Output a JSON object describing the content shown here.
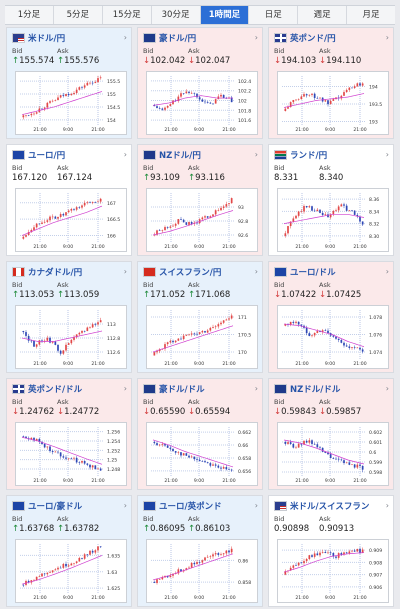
{
  "tabs": [
    {
      "label": "1分足",
      "active": false
    },
    {
      "label": "5分足",
      "active": false
    },
    {
      "label": "15分足",
      "active": false
    },
    {
      "label": "30分足",
      "active": false
    },
    {
      "label": "1時間足",
      "active": true
    },
    {
      "label": "日足",
      "active": false
    },
    {
      "label": "週足",
      "active": false
    },
    {
      "label": "月足",
      "active": false
    }
  ],
  "labels": {
    "bid": "Bid",
    "ask": "Ask"
  },
  "colors": {
    "up": "#1e8a3a",
    "down": "#d23b3b",
    "candle_up": "#e24848",
    "candle_down": "#2f48b6",
    "ma": "#cf3fcf",
    "card_blue": "#e7f1fb",
    "card_pink": "#fbe9ea"
  },
  "cards": [
    {
      "name": "米ドル/円",
      "bg": "blue",
      "flag": "us",
      "dir": "up",
      "bid": "155.574",
      "ask": "155.576",
      "chart_data": {
        "type": "candlestick",
        "xticks": [
          "21:00",
          "9:00",
          "21:00"
        ],
        "yticks": [
          "155.5",
          "155",
          "154.5",
          "154"
        ],
        "ylim": [
          153.8,
          155.7
        ],
        "trend": [
          154.1,
          154.3,
          154.6,
          154.9,
          155.1,
          155.4,
          155.6
        ],
        "ma": [
          154.2,
          154.35,
          154.5,
          154.7,
          154.9,
          155.1
        ]
      }
    },
    {
      "name": "豪ドル/円",
      "bg": "pink",
      "flag": "au",
      "dir": "down",
      "bid": "102.042",
      "ask": "102.047",
      "chart_data": {
        "type": "candlestick",
        "xticks": [
          "21:00",
          "9:00",
          "21:00"
        ],
        "yticks": [
          "102.4",
          "102.2",
          "102",
          "101.8",
          "101.6"
        ],
        "ylim": [
          101.5,
          102.5
        ],
        "trend": [
          101.9,
          101.8,
          102.0,
          102.2,
          102.1,
          101.9,
          102.1,
          102.0
        ],
        "ma": [
          101.9,
          101.95,
          102.05,
          102.1,
          102.05,
          102.05
        ]
      }
    },
    {
      "name": "英ポンド/円",
      "bg": "pink",
      "flag": "gb",
      "dir": "down",
      "bid": "194.103",
      "ask": "194.110",
      "chart_data": {
        "type": "candlestick",
        "xticks": [
          "21:00",
          "9:00",
          "21:00"
        ],
        "yticks": [
          "194",
          "193.5",
          "193"
        ],
        "ylim": [
          192.9,
          194.3
        ],
        "trend": [
          193.3,
          193.6,
          193.8,
          193.7,
          193.5,
          193.7,
          194.0,
          194.1
        ],
        "ma": [
          193.4,
          193.5,
          193.6,
          193.65,
          193.7,
          193.8
        ]
      }
    },
    {
      "name": "ユーロ/円",
      "bg": "white",
      "flag": "eu",
      "dir": "none",
      "bid": "167.120",
      "ask": "167.124",
      "chart_data": {
        "type": "candlestick",
        "xticks": [
          "21:00",
          "9:00",
          "21:00"
        ],
        "yticks": [
          "167",
          "166.5",
          "166"
        ],
        "ylim": [
          165.8,
          167.3
        ],
        "trend": [
          165.9,
          166.3,
          166.5,
          166.6,
          166.8,
          167.0,
          167.1
        ],
        "ma": [
          166.0,
          166.2,
          166.4,
          166.55,
          166.7,
          166.9
        ]
      }
    },
    {
      "name": "NZドル/円",
      "bg": "pink",
      "flag": "nz",
      "dir": "up",
      "bid": "93.109",
      "ask": "93.116",
      "chart_data": {
        "type": "candlestick",
        "xticks": [
          "21:00",
          "9:00",
          "21:00"
        ],
        "yticks": [
          "93",
          "92.8",
          "92.6"
        ],
        "ylim": [
          92.5,
          93.2
        ],
        "trend": [
          92.6,
          92.7,
          92.8,
          92.75,
          92.85,
          92.95,
          93.1
        ],
        "ma": [
          92.6,
          92.65,
          92.72,
          92.8,
          92.88,
          92.95
        ]
      }
    },
    {
      "name": "ランド/円",
      "bg": "white",
      "flag": "za",
      "dir": "none",
      "bid": "8.331",
      "ask": "8.340",
      "chart_data": {
        "type": "candlestick",
        "xticks": [
          "21:00",
          "9:00",
          "21:00"
        ],
        "yticks": [
          "8.36",
          "8.34",
          "8.32",
          "8.30"
        ],
        "ylim": [
          8.29,
          8.37
        ],
        "trend": [
          8.3,
          8.33,
          8.35,
          8.34,
          8.33,
          8.35,
          8.34,
          8.32
        ],
        "ma": [
          8.32,
          8.325,
          8.33,
          8.335,
          8.335,
          8.33
        ]
      }
    },
    {
      "name": "カナダドル/円",
      "bg": "blue",
      "flag": "ca",
      "dir": "up",
      "bid": "113.053",
      "ask": "113.059",
      "chart_data": {
        "type": "candlestick",
        "xticks": [
          "21:00",
          "9:00",
          "21:00"
        ],
        "yticks": [
          "113",
          "112.8",
          "112.6"
        ],
        "ylim": [
          112.5,
          113.2
        ],
        "trend": [
          112.9,
          112.7,
          112.8,
          112.6,
          112.8,
          112.95,
          113.05
        ],
        "ma": [
          112.8,
          112.75,
          112.75,
          112.8,
          112.85,
          112.9
        ]
      }
    },
    {
      "name": "スイスフラン/円",
      "bg": "blue",
      "flag": "ch",
      "dir": "up",
      "bid": "171.052",
      "ask": "171.068",
      "chart_data": {
        "type": "candlestick",
        "xticks": [
          "21:00",
          "9:00",
          "21:00"
        ],
        "yticks": [
          "171",
          "170.5",
          "170"
        ],
        "ylim": [
          169.8,
          171.2
        ],
        "trend": [
          169.9,
          170.2,
          170.4,
          170.5,
          170.6,
          170.8,
          171.0
        ],
        "ma": [
          170.0,
          170.15,
          170.3,
          170.45,
          170.6,
          170.75
        ]
      }
    },
    {
      "name": "ユーロ/ドル",
      "bg": "pink",
      "flag": "eu",
      "dir": "down",
      "bid": "1.07422",
      "ask": "1.07425",
      "chart_data": {
        "type": "candlestick",
        "xticks": [
          "21:00",
          "9:00",
          "21:00"
        ],
        "yticks": [
          "1.078",
          "1.076",
          "1.074"
        ],
        "ylim": [
          1.0732,
          1.0788
        ],
        "trend": [
          1.077,
          1.0775,
          1.076,
          1.0765,
          1.0755,
          1.0745,
          1.0742
        ],
        "ma": [
          1.0772,
          1.077,
          1.0765,
          1.076,
          1.0752,
          1.0746
        ]
      }
    },
    {
      "name": "英ポンド/ドル",
      "bg": "pink",
      "flag": "gb",
      "dir": "down",
      "bid": "1.24762",
      "ask": "1.24772",
      "chart_data": {
        "type": "candlestick",
        "xticks": [
          "21:00",
          "9:00",
          "21:00"
        ],
        "yticks": [
          "1.256",
          "1.254",
          "1.252",
          "1.25",
          "1.248"
        ],
        "ylim": [
          1.2465,
          1.257
        ],
        "trend": [
          1.255,
          1.2545,
          1.2525,
          1.251,
          1.25,
          1.249,
          1.2477
        ],
        "ma": [
          1.2548,
          1.254,
          1.2528,
          1.2515,
          1.2502,
          1.249
        ]
      }
    },
    {
      "name": "豪ドル/ドル",
      "bg": "pink",
      "flag": "au",
      "dir": "down",
      "bid": "0.65590",
      "ask": "0.65594",
      "chart_data": {
        "type": "candlestick",
        "xticks": [
          "21:00",
          "9:00",
          "21:00"
        ],
        "yticks": [
          "0.662",
          "0.66",
          "0.658",
          "0.656"
        ],
        "ylim": [
          0.6552,
          0.6628
        ],
        "trend": [
          0.6605,
          0.6598,
          0.6588,
          0.658,
          0.6574,
          0.6566,
          0.6559
        ],
        "ma": [
          0.6608,
          0.66,
          0.659,
          0.6582,
          0.6574,
          0.6566
        ]
      }
    },
    {
      "name": "NZドル/ドル",
      "bg": "pink",
      "flag": "nz",
      "dir": "down",
      "bid": "0.59843",
      "ask": "0.59857",
      "chart_data": {
        "type": "candlestick",
        "xticks": [
          "21:00",
          "9:00",
          "21:00"
        ],
        "yticks": [
          "0.602",
          "0.601",
          "0.6",
          "0.599",
          "0.598"
        ],
        "ylim": [
          0.5976,
          0.6025
        ],
        "trend": [
          0.601,
          0.6005,
          0.6012,
          0.6,
          0.5992,
          0.5988,
          0.5984
        ],
        "ma": [
          0.6012,
          0.6009,
          0.6004,
          0.5998,
          0.5992,
          0.5988
        ]
      }
    },
    {
      "name": "ユーロ/豪ドル",
      "bg": "blue",
      "flag": "eu",
      "dir": "up",
      "bid": "1.63768",
      "ask": "1.63782",
      "chart_data": {
        "type": "candlestick",
        "xticks": [
          "21:00",
          "9:00",
          "21:00"
        ],
        "yticks": [
          "1.635",
          "1.63",
          "1.625"
        ],
        "ylim": [
          1.6235,
          1.6385
        ],
        "trend": [
          1.626,
          1.628,
          1.63,
          1.6315,
          1.633,
          1.6355,
          1.6377
        ],
        "ma": [
          1.6262,
          1.6275,
          1.6292,
          1.631,
          1.633,
          1.635
        ]
      }
    },
    {
      "name": "ユーロ/英ポンド",
      "bg": "blue",
      "flag": "eu",
      "dir": "up",
      "bid": "0.86095",
      "ask": "0.86103",
      "chart_data": {
        "type": "candlestick",
        "xticks": [
          "21:00",
          "9:00",
          "21:00"
        ],
        "yticks": [
          "0.86",
          "0.858"
        ],
        "ylim": [
          0.857,
          0.8615
        ],
        "trend": [
          0.858,
          0.8585,
          0.859,
          0.8596,
          0.8602,
          0.8606,
          0.861
        ],
        "ma": [
          0.8582,
          0.8586,
          0.8591,
          0.8596,
          0.8601,
          0.8606
        ]
      }
    },
    {
      "name": "米ドル/スイスフラン",
      "bg": "white",
      "flag": "us",
      "dir": "none",
      "bid": "0.90898",
      "ask": "0.90913",
      "chart_data": {
        "type": "candlestick",
        "xticks": [
          "21:00",
          "9:00",
          "21:00"
        ],
        "yticks": [
          "0.909",
          "0.908",
          "0.907",
          "0.906"
        ],
        "ylim": [
          0.9055,
          0.9095
        ],
        "trend": [
          0.907,
          0.9078,
          0.9085,
          0.9088,
          0.9085,
          0.909,
          0.9089
        ],
        "ma": [
          0.9072,
          0.9076,
          0.9081,
          0.9085,
          0.9087,
          0.9088
        ]
      }
    }
  ]
}
